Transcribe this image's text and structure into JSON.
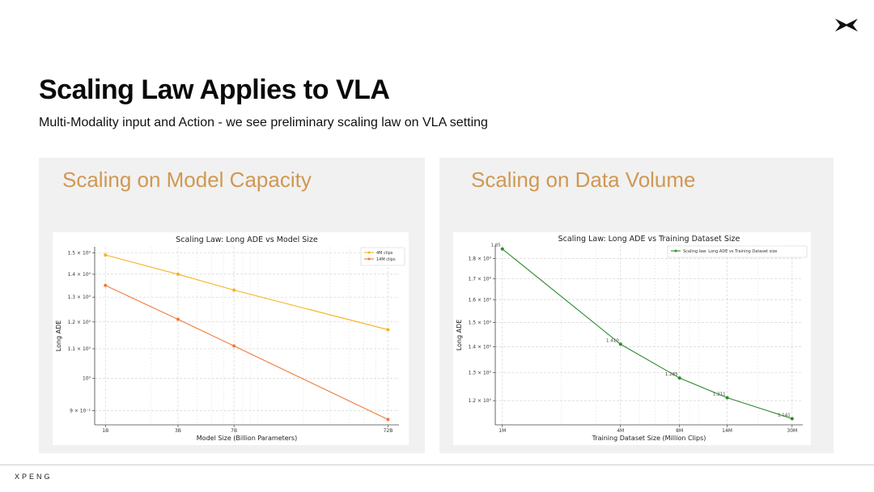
{
  "brand": {
    "name": "XPENG",
    "accent": "#d09852"
  },
  "page": {
    "title": "Scaling Law Applies to VLA",
    "subtitle": "Multi-Modality input and Action - we see preliminary scaling law on VLA setting"
  },
  "panels": {
    "left": {
      "title": "Scaling on Model Capacity"
    },
    "right": {
      "title": "Scaling on Data Volume"
    }
  },
  "chart_data": [
    {
      "type": "line",
      "title": "Scaling Law: Long ADE vs Model Size",
      "xlabel": "Model Size (Billion Parameters)",
      "ylabel": "Long ADE",
      "xscale": "log",
      "yscale": "log",
      "xlim": [
        0.85,
        85
      ],
      "ylim": [
        0.86,
        1.53
      ],
      "x": [
        1,
        3,
        7,
        72
      ],
      "xtick_labels": [
        "1B",
        "3B",
        "7B",
        "72B"
      ],
      "yticks": [
        1.5,
        1.4,
        1.3,
        1.2,
        1.1,
        1.0,
        0.9
      ],
      "ytick_labels": [
        "1.5 × 10⁰",
        "1.4 × 10⁰",
        "1.3 × 10⁰",
        "1.2 × 10⁰",
        "1.1 × 10⁰",
        "10⁰",
        "9 × 10⁻¹"
      ],
      "series": [
        {
          "name": "4M clips",
          "color": "#f5b31f",
          "values": [
            1.49,
            1.4,
            1.33,
            1.17
          ]
        },
        {
          "name": "14M clips",
          "color": "#f07a3b",
          "values": [
            1.35,
            1.21,
            1.11,
            0.875
          ]
        }
      ],
      "legend_position": "top-right",
      "grid": true
    },
    {
      "type": "line",
      "title": "Scaling Law: Long ADE vs Training Dataset Size",
      "xlabel": "Training Dataset Size (Million Clips)",
      "ylabel": "Long ADE",
      "xscale": "log",
      "yscale": "log",
      "xlim": [
        0.92,
        34
      ],
      "ylim": [
        1.12,
        1.87
      ],
      "x": [
        1,
        4,
        8,
        14,
        30
      ],
      "xtick_labels": [
        "1M",
        "4M",
        "8M",
        "14M",
        "30M"
      ],
      "yticks": [
        1.8,
        1.7,
        1.6,
        1.5,
        1.4,
        1.3,
        1.2
      ],
      "ytick_labels": [
        "1.8 × 10⁰",
        "1.7 × 10⁰",
        "1.6 × 10⁰",
        "1.5 × 10⁰",
        "1.4 × 10⁰",
        "1.3 × 10⁰",
        "1.2 × 10⁰"
      ],
      "series": [
        {
          "name": "Scaling law: Long ADE vs Training Dataset size",
          "color": "#2e8b2e",
          "values": [
            1.85,
            1.41,
            1.28,
            1.21,
            1.14
          ]
        }
      ],
      "point_labels": [
        "1.85",
        "1.410",
        "1.285",
        "1.211",
        "1.141"
      ],
      "legend_position": "top-right",
      "grid": true
    }
  ]
}
